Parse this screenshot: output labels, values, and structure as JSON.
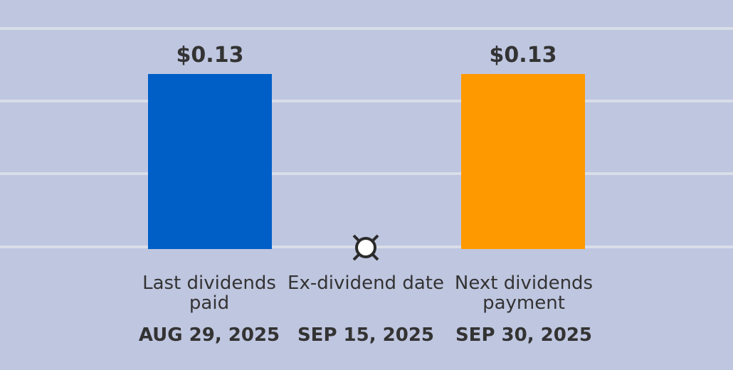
{
  "chart_data": {
    "type": "bar",
    "categories": [
      "Last dividends paid",
      "Ex-dividend date",
      "Next dividends payment"
    ],
    "dates": [
      "AUG 29, 2025",
      "SEP 15, 2025",
      "SEP 30, 2025"
    ],
    "bars": [
      {
        "category": "Last dividends paid",
        "value": 0.13,
        "label": "$0.13",
        "color": "#005ec7"
      },
      {
        "category": "Next dividends payment",
        "value": 0.13,
        "label": "$0.13",
        "color": "#ff9900"
      }
    ],
    "ex_dividend_marker": {
      "category": "Ex-dividend date",
      "icon": "currency-sign-icon"
    },
    "grid": true,
    "colors": {
      "background": "#bfc6e0",
      "grid": "#d8dde8",
      "text": "#333333"
    }
  }
}
